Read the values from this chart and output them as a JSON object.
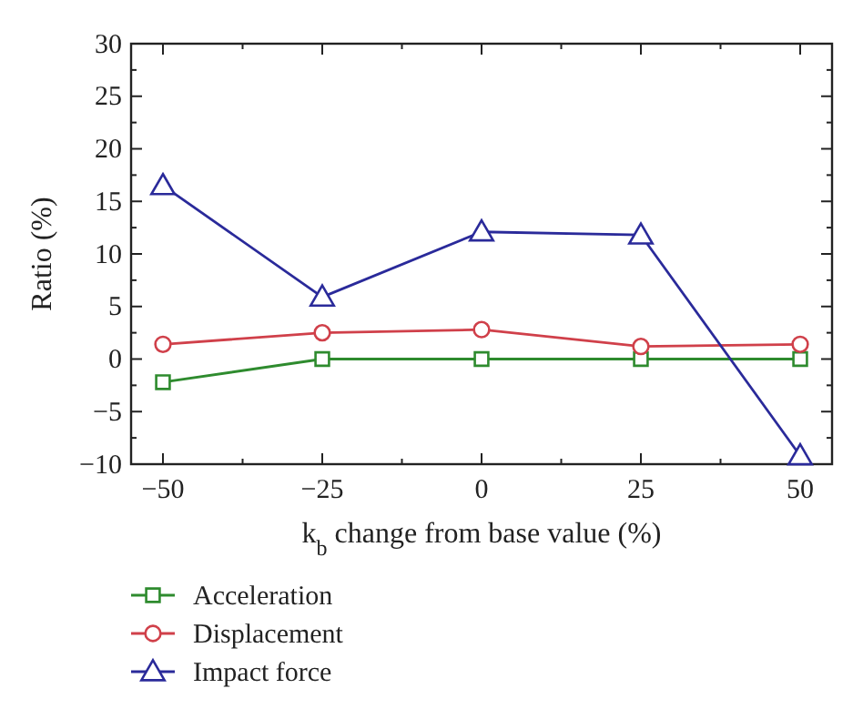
{
  "chart_data": {
    "type": "line",
    "xlabel": "k$_{b}$ change from base value (%)",
    "ylabel": "Ratio (%)",
    "x": [
      -50,
      -25,
      0,
      25,
      50
    ],
    "series": [
      {
        "name": "Acceleration",
        "color": "#2e8b2e",
        "marker": "square",
        "values": [
          -2.2,
          0,
          0,
          0,
          0
        ]
      },
      {
        "name": "Displacement",
        "color": "#d0404a",
        "marker": "circle",
        "values": [
          1.4,
          2.5,
          2.8,
          1.2,
          1.4
        ]
      },
      {
        "name": "Impact force",
        "color": "#2a2a9a",
        "marker": "triangle",
        "values": [
          16.5,
          5.9,
          12.1,
          11.8,
          -9.2
        ]
      }
    ],
    "xlim": [
      -55,
      55
    ],
    "xticks": [
      -50,
      {
        "value": -37.5,
        "label": null
      },
      -25,
      {
        "value": -12.5,
        "label": null
      },
      0,
      {
        "value": 12.5,
        "label": null
      },
      25,
      {
        "value": 37.5,
        "label": null
      },
      50
    ],
    "ylim": [
      -10,
      30
    ],
    "yticks": [
      -10,
      {
        "value": -7.5,
        "label": null
      },
      -5,
      {
        "value": -2.5,
        "label": null
      },
      0,
      {
        "value": 2.5,
        "label": null
      },
      5,
      {
        "value": 7.5,
        "label": null
      },
      10,
      {
        "value": 12.5,
        "label": null
      },
      15,
      {
        "value": 17.5,
        "label": null
      },
      20,
      {
        "value": 22.5,
        "label": null
      },
      25,
      {
        "value": 27.5,
        "label": null
      },
      30
    ],
    "grid": false,
    "legend": "bottom",
    "line_style": "solid"
  }
}
